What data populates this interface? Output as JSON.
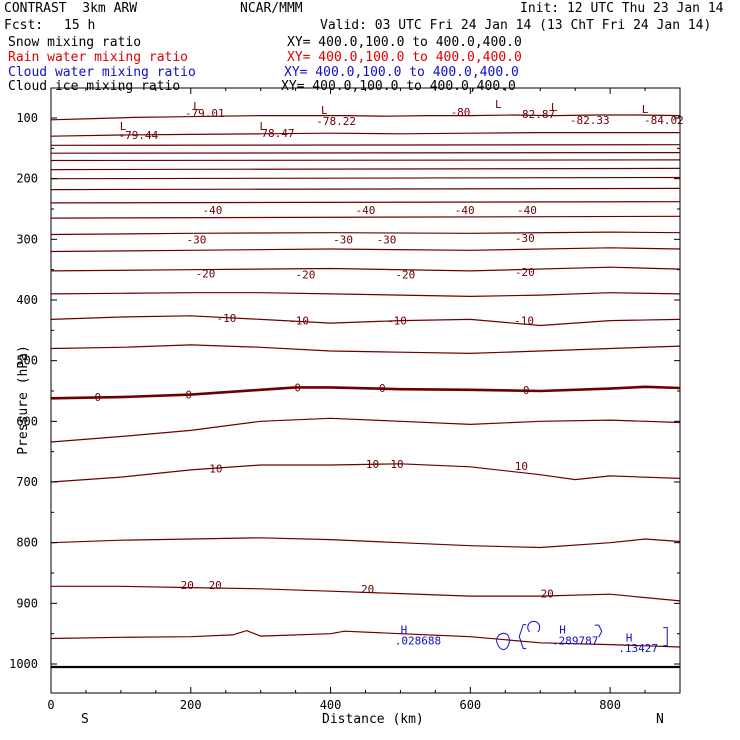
{
  "header": {
    "model": "CONTRAST  3km ARW",
    "center": "NCAR/MMM",
    "init": "Init: 12 UTC Thu 23 Jan 14",
    "fcst_label": "Fcst:",
    "fcst_value": "15 h",
    "valid": "Valid: 03 UTC Fri 24 Jan 14 (13 ChT Fri 24 Jan 14)"
  },
  "legend": [
    {
      "name": "Snow mixing ratio",
      "xy": "XY= 400.0,100.0 to 400.0,400.0",
      "color": "#000000"
    },
    {
      "name": "Rain water mixing ratio",
      "xy": "XY= 400.0,100.0 to 400.0,400.0",
      "color": "#e00000"
    },
    {
      "name": "Cloud water mixing ratio",
      "xy": "XY= 400.0,100.0 to 400.0,400.0",
      "color": "#1010c8"
    },
    {
      "name": "Cloud ice mixing ratio",
      "xy": "XY= 400.0,100.0 to 400.0,400.0",
      "color": "#000000"
    }
  ],
  "chart_data": {
    "type": "contour",
    "xlabel": "Distance (km)",
    "ylabel": "Pressure (hPa)",
    "xlim": [
      0,
      900
    ],
    "ylim": [
      1050,
      50
    ],
    "x_ticks": [
      "0",
      "200",
      "400",
      "600",
      "800"
    ],
    "y_ticks": [
      "100",
      "200",
      "300",
      "400",
      "500",
      "600",
      "700",
      "800",
      "900",
      "1000"
    ],
    "y_tick_values": [
      100,
      200,
      300,
      400,
      500,
      600,
      700,
      800,
      900,
      1000
    ],
    "x_tick_values": [
      0,
      200,
      400,
      600,
      800
    ],
    "left_end_label": "S",
    "right_end_label": "N",
    "contour_color": "#6b0000",
    "contours": [
      {
        "x": [
          0,
          60,
          120,
          180,
          240,
          300,
          360,
          420,
          480,
          540,
          600,
          660,
          720,
          780,
          840,
          900
        ],
        "p": [
          103,
          101,
          99,
          98,
          97,
          96,
          96,
          96,
          97,
          96,
          96,
          95,
          96,
          95,
          95,
          96
        ]
      },
      {
        "x": [
          0,
          100,
          200,
          300,
          400,
          500,
          600,
          700,
          800,
          900
        ],
        "p": [
          130,
          128,
          127,
          126,
          125,
          126,
          125,
          124,
          124,
          124
        ]
      },
      {
        "x": [
          0,
          900
        ],
        "p": [
          145,
          144
        ]
      },
      {
        "x": [
          0,
          900
        ],
        "p": [
          158,
          157
        ]
      },
      {
        "x": [
          0,
          900
        ],
        "p": [
          170,
          169
        ]
      },
      {
        "x": [
          0,
          900
        ],
        "p": [
          185,
          183
        ]
      },
      {
        "x": [
          0,
          900
        ],
        "p": [
          200,
          198
        ]
      },
      {
        "x": [
          0,
          900
        ],
        "p": [
          218,
          216
        ]
      },
      {
        "x": [
          0,
          900
        ],
        "p": [
          240,
          238
        ]
      },
      {
        "x": [
          0,
          900
        ],
        "p": [
          265,
          262
        ]
      },
      {
        "x": [
          0,
          200,
          400,
          600,
          800,
          900
        ],
        "p": [
          292,
          290,
          289,
          290,
          288,
          289
        ]
      },
      {
        "x": [
          0,
          200,
          400,
          600,
          800,
          900
        ],
        "p": [
          320,
          318,
          316,
          318,
          314,
          316
        ]
      },
      {
        "x": [
          0,
          200,
          400,
          600,
          800,
          900
        ],
        "p": [
          352,
          350,
          348,
          352,
          346,
          349
        ]
      },
      {
        "x": [
          0,
          100,
          200,
          300,
          400,
          500,
          600,
          700,
          800,
          900
        ],
        "p": [
          390,
          389,
          388,
          388,
          390,
          392,
          394,
          392,
          388,
          390
        ]
      },
      {
        "x": [
          0,
          100,
          200,
          300,
          400,
          500,
          600,
          700,
          800,
          900
        ],
        "p": [
          432,
          428,
          426,
          432,
          438,
          434,
          432,
          442,
          434,
          432
        ]
      },
      {
        "x": [
          0,
          100,
          200,
          300,
          400,
          500,
          600,
          700,
          800,
          900
        ],
        "p": [
          480,
          478,
          474,
          478,
          484,
          486,
          488,
          484,
          480,
          476
        ]
      },
      {
        "x": [
          0,
          100,
          200,
          300,
          350,
          400,
          500,
          600,
          700,
          800,
          850,
          900
        ],
        "p": [
          562,
          560,
          556,
          548,
          544,
          544,
          547,
          548,
          550,
          546,
          543,
          545
        ],
        "bold": true
      },
      {
        "x": [
          0,
          100,
          200,
          300,
          400,
          500,
          600,
          700,
          800,
          900
        ],
        "p": [
          634,
          625,
          615,
          600,
          595,
          600,
          605,
          600,
          598,
          602
        ]
      },
      {
        "x": [
          0,
          100,
          200,
          300,
          400,
          500,
          600,
          700,
          750,
          800,
          900
        ],
        "p": [
          700,
          692,
          680,
          672,
          672,
          670,
          675,
          688,
          696,
          690,
          694
        ]
      },
      {
        "x": [
          0,
          100,
          200,
          300,
          400,
          500,
          600,
          700,
          800,
          850,
          900
        ],
        "p": [
          800,
          796,
          794,
          792,
          795,
          800,
          805,
          808,
          800,
          794,
          798
        ]
      },
      {
        "x": [
          0,
          100,
          200,
          300,
          400,
          500,
          600,
          700,
          800,
          900
        ],
        "p": [
          872,
          872,
          874,
          876,
          880,
          884,
          888,
          888,
          885,
          896
        ]
      },
      {
        "x": [
          0,
          100,
          200,
          260,
          280,
          300,
          400,
          420,
          500,
          600,
          700,
          800,
          900
        ],
        "p": [
          958,
          956,
          955,
          952,
          945,
          954,
          950,
          946,
          950,
          955,
          965,
          968,
          972
        ]
      }
    ],
    "contour_labels": [
      {
        "text": "-79.01",
        "x": 220,
        "p": 92
      },
      {
        "text": "-79.44",
        "x": 125,
        "p": 128
      },
      {
        "text": "-78.47",
        "x": 320,
        "p": 125
      },
      {
        "text": "-78.22",
        "x": 408,
        "p": 105
      },
      {
        "text": "-80",
        "x": 586,
        "p": 90
      },
      {
        "text": "-82.87",
        "x": 693,
        "p": 93
      },
      {
        "text": "-82.33",
        "x": 771,
        "p": 103
      },
      {
        "text": "-84.02",
        "x": 877,
        "p": 103
      },
      {
        "text": "-40",
        "x": 231,
        "p": 252
      },
      {
        "text": "-40",
        "x": 450,
        "p": 252
      },
      {
        "text": "-40",
        "x": 592,
        "p": 252
      },
      {
        "text": "-40",
        "x": 681,
        "p": 252
      },
      {
        "text": "-30",
        "x": 208,
        "p": 300
      },
      {
        "text": "-30",
        "x": 418,
        "p": 300
      },
      {
        "text": "-30",
        "x": 480,
        "p": 300
      },
      {
        "text": "-30",
        "x": 678,
        "p": 298
      },
      {
        "text": "-20",
        "x": 221,
        "p": 356
      },
      {
        "text": "-20",
        "x": 364,
        "p": 358
      },
      {
        "text": "-20",
        "x": 507,
        "p": 358
      },
      {
        "text": "-20",
        "x": 678,
        "p": 354
      },
      {
        "text": "-10",
        "x": 251,
        "p": 430
      },
      {
        "text": "-10",
        "x": 355,
        "p": 434
      },
      {
        "text": "-10",
        "x": 495,
        "p": 434
      },
      {
        "text": "-10",
        "x": 677,
        "p": 434
      },
      {
        "text": "0",
        "x": 67,
        "p": 560
      },
      {
        "text": "0",
        "x": 197,
        "p": 556
      },
      {
        "text": "0",
        "x": 353,
        "p": 544
      },
      {
        "text": "0",
        "x": 474,
        "p": 545
      },
      {
        "text": "0",
        "x": 680,
        "p": 548
      },
      {
        "text": "10",
        "x": 236,
        "p": 678
      },
      {
        "text": "10",
        "x": 460,
        "p": 670
      },
      {
        "text": "10",
        "x": 495,
        "p": 670
      },
      {
        "text": "10",
        "x": 673,
        "p": 674
      },
      {
        "text": "20",
        "x": 195,
        "p": 870
      },
      {
        "text": "20",
        "x": 235,
        "p": 870
      },
      {
        "text": "20",
        "x": 453,
        "p": 876
      },
      {
        "text": "20",
        "x": 710,
        "p": 884
      }
    ],
    "low_markers": [
      {
        "x": 208,
        "p": 80
      },
      {
        "x": 103,
        "p": 113
      },
      {
        "x": 303,
        "p": 113
      },
      {
        "x": 391,
        "p": 87
      },
      {
        "x": 640,
        "p": 77
      },
      {
        "x": 720,
        "p": 82
      },
      {
        "x": 850,
        "p": 85
      }
    ],
    "cloud_water_labels": [
      {
        "text": "H",
        "x": 505,
        "p": 943
      },
      {
        "text": ".028688",
        "x": 525,
        "p": 961
      },
      {
        "text": "H",
        "x": 732,
        "p": 943
      },
      {
        "text": ".289787",
        "x": 750,
        "p": 961
      },
      {
        "text": "H",
        "x": 827,
        "p": 956
      },
      {
        "text": ".13427",
        "x": 840,
        "p": 974
      }
    ]
  }
}
